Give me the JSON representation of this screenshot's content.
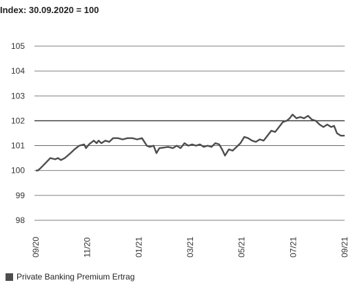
{
  "chart_data": {
    "type": "line",
    "title": "Index: 30.09.2020 = 100",
    "ylim": [
      98,
      105
    ],
    "yticks": [
      98,
      99,
      100,
      101,
      102,
      103,
      104,
      105
    ],
    "xticks": [
      "09/20",
      "11/20",
      "01/21",
      "03/21",
      "05/21",
      "07/21",
      "09/21"
    ],
    "grid": "horizontal",
    "legend_position": "bottom-left",
    "series": [
      {
        "name": "Private Banking Premium Ertrag",
        "color": "#4d4d4d",
        "x": [
          "09/20",
          "10/20",
          "11/20",
          "12/20",
          "01/21",
          "02/21",
          "03/21",
          "04/21",
          "05/21",
          "06/21",
          "07/21",
          "08/21",
          "09/21"
        ],
        "values": [
          100.0,
          100.5,
          101.0,
          101.2,
          101.3,
          100.9,
          101.0,
          101.05,
          100.65,
          101.3,
          102.0,
          102.15,
          101.4
        ]
      }
    ],
    "points": [
      [
        0,
        100.0
      ],
      [
        0.2,
        100.0
      ],
      [
        0.5,
        100.1
      ],
      [
        1.0,
        100.3
      ],
      [
        1.5,
        100.5
      ],
      [
        2.0,
        100.45
      ],
      [
        2.3,
        100.5
      ],
      [
        2.6,
        100.42
      ],
      [
        3.0,
        100.5
      ],
      [
        3.3,
        100.6
      ],
      [
        3.6,
        100.7
      ],
      [
        4.0,
        100.85
      ],
      [
        4.5,
        101.0
      ],
      [
        5.0,
        101.05
      ],
      [
        5.2,
        100.9
      ],
      [
        5.5,
        101.05
      ],
      [
        6.0,
        101.2
      ],
      [
        6.3,
        101.1
      ],
      [
        6.5,
        101.2
      ],
      [
        6.8,
        101.1
      ],
      [
        7.2,
        101.2
      ],
      [
        7.6,
        101.15
      ],
      [
        8.0,
        101.3
      ],
      [
        8.5,
        101.3
      ],
      [
        9.0,
        101.25
      ],
      [
        9.5,
        101.3
      ],
      [
        10.0,
        101.3
      ],
      [
        10.5,
        101.25
      ],
      [
        11.0,
        101.3
      ],
      [
        11.5,
        101.0
      ],
      [
        11.8,
        100.95
      ],
      [
        12.2,
        101.0
      ],
      [
        12.5,
        100.7
      ],
      [
        12.8,
        100.9
      ],
      [
        13.2,
        100.92
      ],
      [
        13.7,
        100.95
      ],
      [
        14.2,
        100.9
      ],
      [
        14.6,
        101.0
      ],
      [
        15.0,
        100.9
      ],
      [
        15.4,
        101.1
      ],
      [
        15.8,
        101.0
      ],
      [
        16.2,
        101.05
      ],
      [
        16.6,
        101.0
      ],
      [
        17.0,
        101.05
      ],
      [
        17.4,
        100.95
      ],
      [
        17.8,
        101.0
      ],
      [
        18.2,
        100.95
      ],
      [
        18.6,
        101.1
      ],
      [
        19.0,
        101.05
      ],
      [
        19.3,
        100.85
      ],
      [
        19.6,
        100.6
      ],
      [
        20.0,
        100.85
      ],
      [
        20.4,
        100.8
      ],
      [
        20.8,
        100.95
      ],
      [
        21.2,
        101.1
      ],
      [
        21.6,
        101.35
      ],
      [
        22.0,
        101.3
      ],
      [
        22.4,
        101.2
      ],
      [
        22.8,
        101.15
      ],
      [
        23.2,
        101.25
      ],
      [
        23.6,
        101.2
      ],
      [
        24.0,
        101.4
      ],
      [
        24.4,
        101.6
      ],
      [
        24.8,
        101.55
      ],
      [
        25.2,
        101.75
      ],
      [
        25.6,
        101.95
      ],
      [
        26.0,
        102.0
      ],
      [
        26.3,
        102.1
      ],
      [
        26.6,
        102.25
      ],
      [
        27.0,
        102.1
      ],
      [
        27.4,
        102.15
      ],
      [
        27.8,
        102.1
      ],
      [
        28.2,
        102.2
      ],
      [
        28.6,
        102.05
      ],
      [
        29.0,
        102.0
      ],
      [
        29.4,
        101.85
      ],
      [
        29.8,
        101.75
      ],
      [
        30.2,
        101.85
      ],
      [
        30.6,
        101.75
      ],
      [
        30.9,
        101.8
      ],
      [
        31.2,
        101.5
      ],
      [
        31.6,
        101.4
      ],
      [
        32.0,
        101.4
      ]
    ]
  }
}
